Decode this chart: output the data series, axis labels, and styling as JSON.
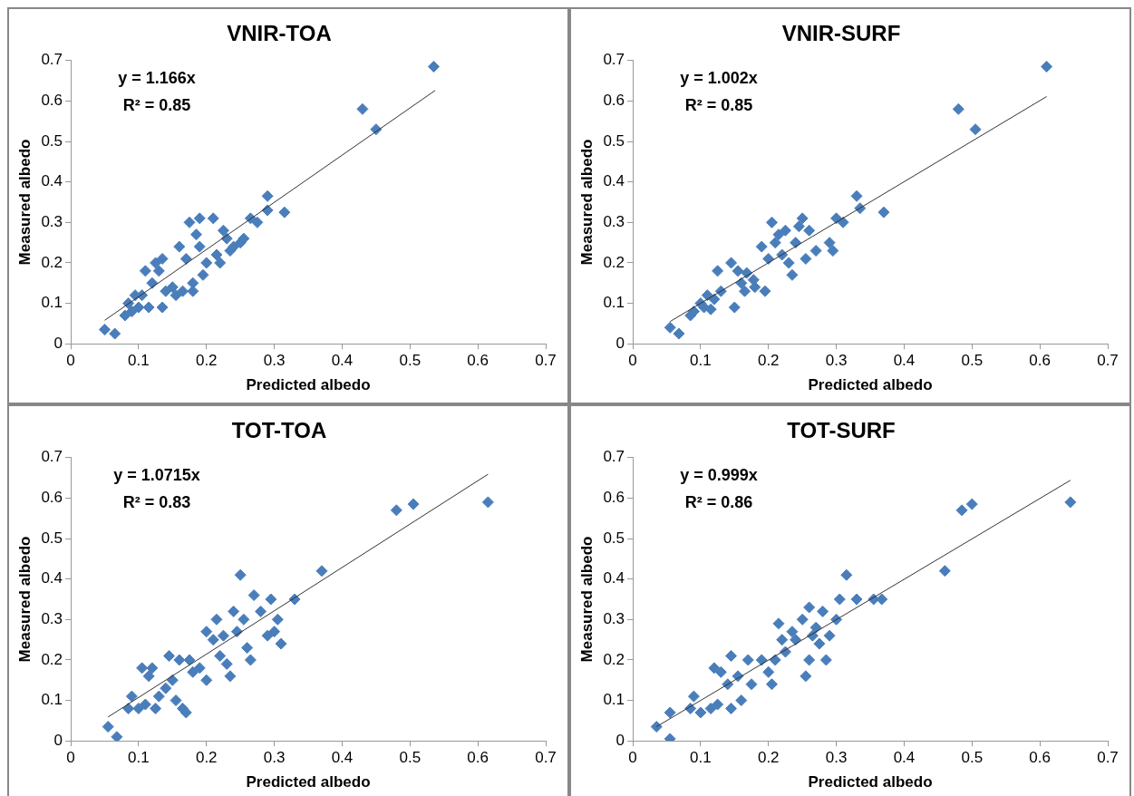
{
  "chart_data": [
    {
      "type": "scatter",
      "title": "VNIR-TOA",
      "xlabel": "Predicted albedo",
      "ylabel": "Measured albedo",
      "xlim": [
        0,
        0.7
      ],
      "xticks": [
        0,
        0.1,
        0.2,
        0.3,
        0.4,
        0.5,
        0.6,
        0.7
      ],
      "ylim": [
        0,
        0.7
      ],
      "yticks": [
        0,
        0.1,
        0.2,
        0.3,
        0.4,
        0.5,
        0.6,
        0.7
      ],
      "grid": false,
      "legend": false,
      "annotations": [
        "y = 1.166x",
        "R² = 0.85"
      ],
      "series": [
        {
          "type": "scatter",
          "marker": "diamond",
          "color": "#4a7ebb",
          "x": [
            0.05,
            0.065,
            0.08,
            0.085,
            0.09,
            0.095,
            0.1,
            0.105,
            0.11,
            0.115,
            0.12,
            0.125,
            0.13,
            0.135,
            0.135,
            0.14,
            0.15,
            0.155,
            0.16,
            0.165,
            0.17,
            0.175,
            0.18,
            0.18,
            0.185,
            0.19,
            0.19,
            0.195,
            0.2,
            0.21,
            0.215,
            0.22,
            0.225,
            0.23,
            0.235,
            0.24,
            0.25,
            0.255,
            0.265,
            0.275,
            0.29,
            0.29,
            0.315,
            0.43,
            0.45,
            0.535
          ],
          "values": [
            0.035,
            0.025,
            0.07,
            0.1,
            0.08,
            0.12,
            0.09,
            0.12,
            0.18,
            0.09,
            0.15,
            0.2,
            0.18,
            0.21,
            0.09,
            0.13,
            0.14,
            0.12,
            0.24,
            0.13,
            0.21,
            0.3,
            0.15,
            0.13,
            0.27,
            0.31,
            0.24,
            0.17,
            0.2,
            0.31,
            0.22,
            0.2,
            0.28,
            0.26,
            0.23,
            0.24,
            0.25,
            0.26,
            0.31,
            0.3,
            0.33,
            0.365,
            0.325,
            0.58,
            0.53,
            0.685
          ]
        },
        {
          "type": "line",
          "marker": "none",
          "color": "#333333",
          "x": [
            0.05,
            0.537
          ],
          "values": [
            0.058,
            0.626
          ]
        }
      ]
    },
    {
      "type": "scatter",
      "title": "VNIR-SURF",
      "xlabel": "Predicted albedo",
      "ylabel": "Measured albedo",
      "xlim": [
        0,
        0.7
      ],
      "xticks": [
        0,
        0.1,
        0.2,
        0.3,
        0.4,
        0.5,
        0.6,
        0.7
      ],
      "ylim": [
        0,
        0.7
      ],
      "yticks": [
        0,
        0.1,
        0.2,
        0.3,
        0.4,
        0.5,
        0.6,
        0.7
      ],
      "grid": false,
      "legend": false,
      "annotations": [
        "y = 1.002x",
        "R² = 0.85"
      ],
      "series": [
        {
          "type": "scatter",
          "marker": "diamond",
          "color": "#4a7ebb",
          "x": [
            0.055,
            0.068,
            0.085,
            0.09,
            0.1,
            0.105,
            0.11,
            0.115,
            0.12,
            0.125,
            0.13,
            0.145,
            0.15,
            0.155,
            0.16,
            0.165,
            0.168,
            0.178,
            0.18,
            0.19,
            0.195,
            0.2,
            0.205,
            0.21,
            0.215,
            0.22,
            0.225,
            0.23,
            0.235,
            0.24,
            0.245,
            0.25,
            0.255,
            0.26,
            0.27,
            0.29,
            0.295,
            0.3,
            0.31,
            0.33,
            0.335,
            0.37,
            0.48,
            0.505,
            0.61
          ],
          "values": [
            0.04,
            0.025,
            0.07,
            0.08,
            0.1,
            0.09,
            0.12,
            0.085,
            0.11,
            0.18,
            0.13,
            0.2,
            0.09,
            0.18,
            0.15,
            0.13,
            0.175,
            0.158,
            0.14,
            0.24,
            0.13,
            0.21,
            0.3,
            0.25,
            0.27,
            0.22,
            0.28,
            0.2,
            0.17,
            0.25,
            0.29,
            0.31,
            0.21,
            0.28,
            0.23,
            0.25,
            0.23,
            0.31,
            0.3,
            0.365,
            0.335,
            0.325,
            0.58,
            0.53,
            0.685
          ]
        },
        {
          "type": "line",
          "marker": "none",
          "color": "#333333",
          "x": [
            0.055,
            0.61
          ],
          "values": [
            0.055,
            0.611
          ]
        }
      ]
    },
    {
      "type": "scatter",
      "title": "TOT-TOA",
      "xlabel": "Predicted albedo",
      "ylabel": "Measured albedo",
      "xlim": [
        0,
        0.7
      ],
      "xticks": [
        0,
        0.1,
        0.2,
        0.3,
        0.4,
        0.5,
        0.6,
        0.7
      ],
      "ylim": [
        0,
        0.7
      ],
      "yticks": [
        0,
        0.1,
        0.2,
        0.3,
        0.4,
        0.5,
        0.6,
        0.7
      ],
      "grid": false,
      "legend": false,
      "annotations": [
        "y = 1.0715x",
        "R² = 0.83"
      ],
      "series": [
        {
          "type": "scatter",
          "marker": "diamond",
          "color": "#4a7ebb",
          "x": [
            0.055,
            0.068,
            0.085,
            0.09,
            0.1,
            0.105,
            0.11,
            0.115,
            0.12,
            0.125,
            0.13,
            0.14,
            0.145,
            0.15,
            0.155,
            0.16,
            0.165,
            0.17,
            0.175,
            0.18,
            0.19,
            0.2,
            0.2,
            0.21,
            0.215,
            0.22,
            0.225,
            0.23,
            0.235,
            0.24,
            0.245,
            0.25,
            0.255,
            0.26,
            0.265,
            0.27,
            0.28,
            0.29,
            0.295,
            0.3,
            0.305,
            0.31,
            0.33,
            0.37,
            0.48,
            0.505,
            0.615
          ],
          "values": [
            0.035,
            0.01,
            0.08,
            0.11,
            0.08,
            0.18,
            0.09,
            0.16,
            0.18,
            0.08,
            0.11,
            0.13,
            0.21,
            0.15,
            0.1,
            0.2,
            0.08,
            0.07,
            0.2,
            0.17,
            0.18,
            0.15,
            0.27,
            0.25,
            0.3,
            0.21,
            0.26,
            0.19,
            0.16,
            0.32,
            0.27,
            0.41,
            0.3,
            0.23,
            0.2,
            0.36,
            0.32,
            0.26,
            0.35,
            0.27,
            0.3,
            0.24,
            0.35,
            0.42,
            0.57,
            0.585,
            0.59
          ]
        },
        {
          "type": "line",
          "marker": "none",
          "color": "#333333",
          "x": [
            0.055,
            0.615
          ],
          "values": [
            0.059,
            0.659
          ]
        }
      ]
    },
    {
      "type": "scatter",
      "title": "TOT-SURF",
      "xlabel": "Predicted albedo",
      "ylabel": "Measured albedo",
      "xlim": [
        0,
        0.7
      ],
      "xticks": [
        0,
        0.1,
        0.2,
        0.3,
        0.4,
        0.5,
        0.6,
        0.7
      ],
      "ylim": [
        0,
        0.7
      ],
      "yticks": [
        0,
        0.1,
        0.2,
        0.3,
        0.4,
        0.5,
        0.6,
        0.7
      ],
      "grid": false,
      "legend": false,
      "annotations": [
        "y = 0.999x",
        "R² = 0.86"
      ],
      "series": [
        {
          "type": "scatter",
          "marker": "diamond",
          "color": "#4a7ebb",
          "x": [
            0.035,
            0.055,
            0.055,
            0.085,
            0.09,
            0.1,
            0.115,
            0.12,
            0.125,
            0.13,
            0.14,
            0.145,
            0.145,
            0.155,
            0.16,
            0.17,
            0.175,
            0.19,
            0.2,
            0.205,
            0.21,
            0.215,
            0.22,
            0.225,
            0.235,
            0.24,
            0.25,
            0.255,
            0.26,
            0.26,
            0.265,
            0.27,
            0.275,
            0.28,
            0.285,
            0.29,
            0.3,
            0.305,
            0.315,
            0.33,
            0.355,
            0.367,
            0.46,
            0.485,
            0.5,
            0.645
          ],
          "values": [
            0.035,
            0.07,
            0.005,
            0.08,
            0.11,
            0.07,
            0.08,
            0.18,
            0.09,
            0.17,
            0.14,
            0.21,
            0.08,
            0.16,
            0.1,
            0.2,
            0.14,
            0.2,
            0.17,
            0.14,
            0.2,
            0.29,
            0.25,
            0.22,
            0.27,
            0.25,
            0.3,
            0.16,
            0.2,
            0.33,
            0.26,
            0.28,
            0.24,
            0.32,
            0.2,
            0.26,
            0.3,
            0.35,
            0.41,
            0.35,
            0.35,
            0.35,
            0.42,
            0.57,
            0.585,
            0.59
          ]
        },
        {
          "type": "line",
          "marker": "none",
          "color": "#333333",
          "x": [
            0.035,
            0.645
          ],
          "values": [
            0.035,
            0.644
          ]
        }
      ]
    }
  ]
}
